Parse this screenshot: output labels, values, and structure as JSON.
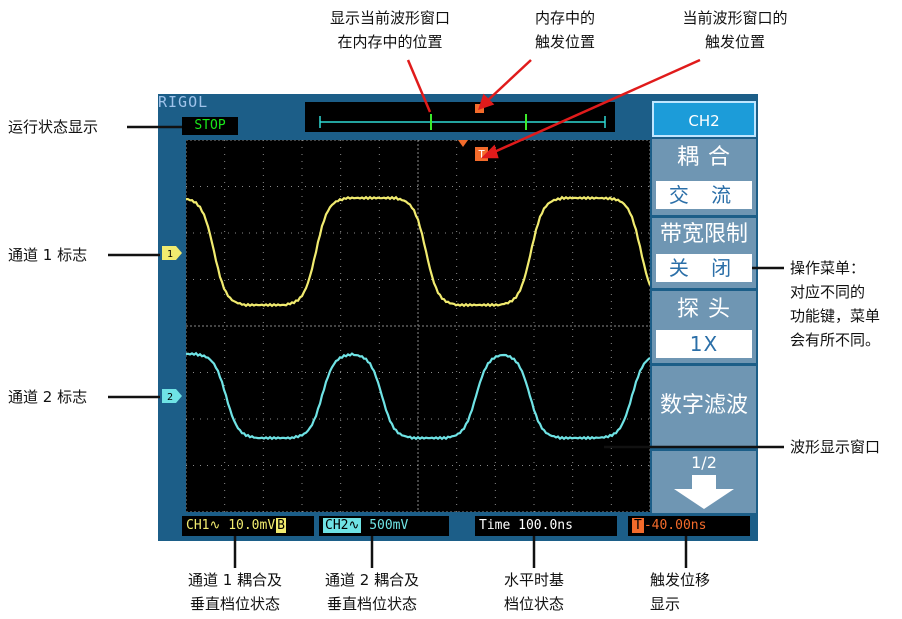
{
  "scope": {
    "brand": "RIGOL",
    "run_status": "STOP",
    "menu": {
      "title": "CH2",
      "items": [
        {
          "label": "耦 合",
          "value": "交 流"
        },
        {
          "label": "带宽限制",
          "value": "关 闭"
        },
        {
          "label": "探 头",
          "value": "1X"
        },
        {
          "label": "数字滤波"
        }
      ],
      "page": "1/2"
    },
    "status_bar": {
      "ch1": "CH1∿ 10.0mV",
      "ch1_badge": "B",
      "ch2_tag": "CH2∿",
      "ch2_value": "500mV",
      "time": "Time 100.0ns",
      "trig_icon": "T",
      "trig_offset": "-40.00ns"
    },
    "channel_markers": {
      "ch1": "1",
      "ch2": "2"
    },
    "trigger_marker": "T",
    "colors": {
      "ch1_wave": "#f1eb6f",
      "ch2_wave": "#6fe3e5",
      "frame": "#1c5e88",
      "menu_title": "#1c9cd9",
      "menu_box": "#6f96b3",
      "status_green": "#19e71a",
      "trigger_orange": "#f36b2b"
    }
  },
  "annotations": {
    "memory_window_position": [
      "显示当前波形窗口",
      "在内存中的位置"
    ],
    "memory_trigger_position": [
      "内存中的",
      "触发位置"
    ],
    "window_trigger_position": [
      "当前波形窗口的",
      "触发位置"
    ],
    "run_status": "运行状态显示",
    "ch1_marker": "通道 1 标志",
    "ch2_marker": "通道 2 标志",
    "operation_menu": [
      "操作菜单：",
      "对应不同的",
      "功能键，菜单",
      "会有所不同。"
    ],
    "waveform_window": "波形显示窗口",
    "ch1_status": [
      "通道 1 耦合及",
      "垂直档位状态"
    ],
    "ch2_status": [
      "通道 2 耦合及",
      "垂直档位状态"
    ],
    "timebase": [
      "水平时基",
      "档位状态"
    ],
    "trigger_offset": [
      "触发位移",
      "显示"
    ]
  }
}
